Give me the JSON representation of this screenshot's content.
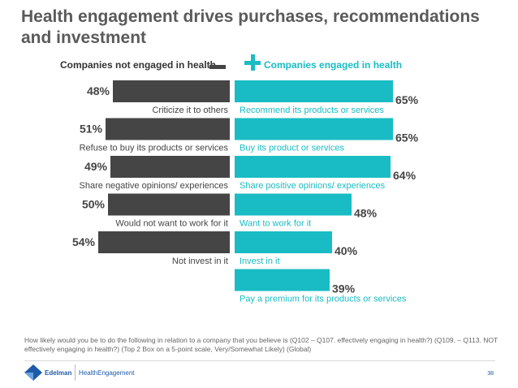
{
  "title": "Health engagement drives purchases, recommendations and investment",
  "header": {
    "left_label": "Companies not engaged in health",
    "right_label": "Companies engaged in health"
  },
  "chart_data": {
    "type": "bar",
    "title": "Health engagement drives purchases, recommendations and investment",
    "orientation": "horizontal-diverging",
    "value_format": "percent",
    "colors": {
      "not_engaged": "#454545",
      "engaged": "#19bcc4"
    },
    "series": [
      {
        "name": "Companies not engaged in health",
        "categories": [
          "Criticize it to others",
          "Refuse to buy its products or services",
          "Share negative opinions/ experiences",
          "Would not want to work for it",
          "Not invest in it"
        ],
        "values": [
          48,
          51,
          49,
          50,
          54
        ],
        "labels": [
          "48%",
          "51%",
          "49%",
          "50%",
          "54%"
        ]
      },
      {
        "name": "Companies engaged in health",
        "categories": [
          "Recommend its products or services",
          "Buy its product or services",
          "Share positive opinions/ experiences",
          "Want to work for it",
          "Invest in it",
          "Pay a premium for its products or services"
        ],
        "values": [
          65,
          65,
          64,
          48,
          40,
          39
        ],
        "labels": [
          "65%",
          "65%",
          "64%",
          "48%",
          "40%",
          "39%"
        ]
      }
    ]
  },
  "footnote": "How likely would you be to do the following in relation to a company that you believe is (Q102 – Q107. effectively engaging in health?) (Q109. – Q113. NOT effectively engaging in health?) (Top 2 Box on a 5-point scale, Very/Somewhat Likely) (Global)",
  "footer": {
    "brand": "Edelman",
    "program": "HealthEngagement",
    "page": "38",
    "brand_color": "#1f5aa8"
  }
}
